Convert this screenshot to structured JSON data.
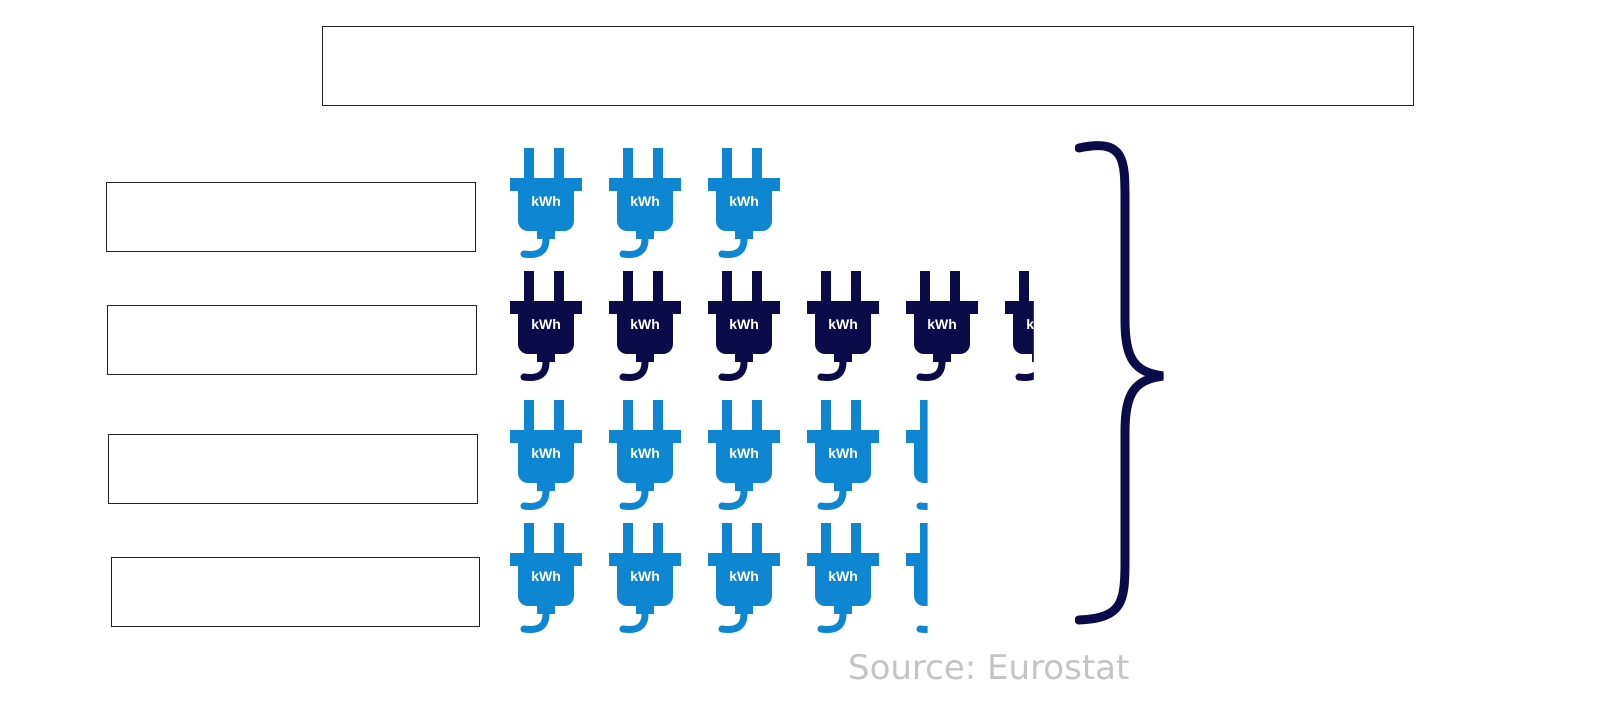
{
  "title": "",
  "row_labels": [
    "",
    "",
    "",
    ""
  ],
  "summary": "",
  "source": "Source: Eurostat",
  "icon": {
    "name": "electric-plug-icon",
    "text": "kWh",
    "colors": [
      "#0f86d1",
      "#0b0b4a",
      "#0f86d1",
      "#0f86d1"
    ]
  },
  "brace_color": "#0b0b4a",
  "chart_data": {
    "type": "pictogram",
    "title": "",
    "categories": [
      "",
      "",
      "",
      ""
    ],
    "values": [
      3.0,
      5.4,
      4.3,
      4.3
    ],
    "unit_icon": "kWh",
    "source": "Source: Eurostat"
  }
}
